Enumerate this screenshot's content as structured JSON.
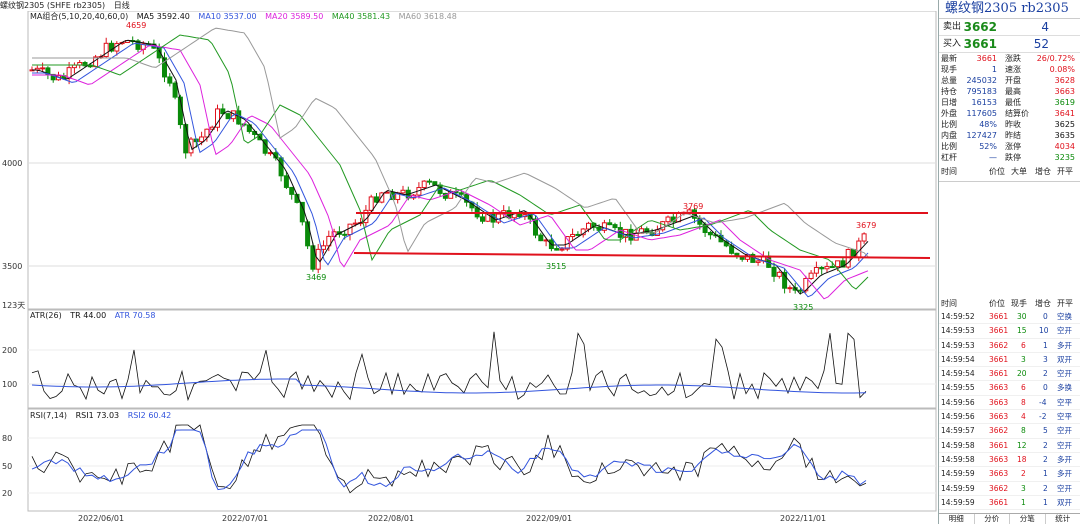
{
  "topbar": {
    "menu": "螺纹钢2305 (SHFE rb2305)",
    "period": "日线"
  },
  "ma": {
    "label": "MA组合(5,10,20,40,60,0)",
    "ma5": "MA5 3592.40",
    "ma10": "MA10 3537.00",
    "ma20": "MA20 3589.50",
    "ma40": "MA40 3581.43",
    "ma60": "MA60 3618.48"
  },
  "colors": {
    "ma5": "#111111",
    "ma10": "#3355dd",
    "ma20": "#dd22dd",
    "ma40": "#229922",
    "ma60": "#999999",
    "up": "#e0111c",
    "down": "#0a8a0a"
  },
  "atr": {
    "label": "ATR(26)",
    "tr": "TR 44.00",
    "atr": "ATR 70.58"
  },
  "rsi": {
    "label": "RSI(7,14)",
    "rsi1": "RSI1 73.03",
    "rsi2": "RSI2 60.42"
  },
  "chart_data": {
    "type": "candlestick",
    "price_ticks": [
      "4000",
      "3500"
    ],
    "atr_ticks": [
      "200",
      "100"
    ],
    "rsi_ticks": [
      "80",
      "50",
      "20"
    ],
    "x_labels": [
      "2022/06/01",
      "2022/07/01",
      "2022/08/01",
      "2022/09/01",
      "2022/11/01"
    ],
    "annotations": [
      "4659",
      "3469",
      "3769",
      "3515",
      "3679",
      "3325"
    ],
    "count_label": "123天"
  },
  "side": {
    "title": "螺纹钢2305  rb2305",
    "sell": {
      "label": "卖出",
      "price": "3662",
      "vol": "4"
    },
    "buy": {
      "label": "买入",
      "price": "3661",
      "vol": "52"
    },
    "quotes": [
      [
        "最新",
        "3661",
        "涨跌",
        "26/0.72%"
      ],
      [
        "现手",
        "1",
        "速涨",
        "0.08%"
      ],
      [
        "总量",
        "245032",
        "开盘",
        "3628"
      ],
      [
        "持仓",
        "795183",
        "最高",
        "3663"
      ],
      [
        "日增",
        "16153",
        "最低",
        "3619"
      ],
      [
        "外盘",
        "117605",
        "结算价",
        "3641"
      ],
      [
        "比例",
        "48%",
        "昨收",
        "3625"
      ],
      [
        "内盘",
        "127427",
        "昨结",
        "3635"
      ],
      [
        "比例",
        "52%",
        "涨停",
        "4034"
      ],
      [
        "杠杆",
        "—",
        "跌停",
        "3235"
      ]
    ],
    "hdr1": [
      "时间",
      "价位",
      "大单",
      "增仓",
      "开平"
    ],
    "hdr2": [
      "时间",
      "价位",
      "现手",
      "增仓",
      "开平"
    ],
    "ticks": [
      [
        "14:59:52",
        "3661",
        "30",
        "0",
        "空换"
      ],
      [
        "14:59:53",
        "3661",
        "15",
        "10",
        "空开"
      ],
      [
        "14:59:53",
        "3662",
        "6",
        "1",
        "多开"
      ],
      [
        "14:59:54",
        "3661",
        "3",
        "3",
        "双开"
      ],
      [
        "14:59:54",
        "3661",
        "20",
        "2",
        "空开"
      ],
      [
        "14:59:55",
        "3663",
        "6",
        "0",
        "多换"
      ],
      [
        "14:59:56",
        "3663",
        "8",
        "-4",
        "空平"
      ],
      [
        "14:59:56",
        "3663",
        "4",
        "-2",
        "空平"
      ],
      [
        "14:59:57",
        "3662",
        "8",
        "5",
        "空开"
      ],
      [
        "14:59:58",
        "3661",
        "12",
        "2",
        "空开"
      ],
      [
        "14:59:58",
        "3663",
        "18",
        "2",
        "多开"
      ],
      [
        "14:59:59",
        "3663",
        "2",
        "1",
        "多开"
      ],
      [
        "14:59:59",
        "3662",
        "3",
        "2",
        "空开"
      ],
      [
        "14:59:59",
        "3661",
        "1",
        "1",
        "双开"
      ]
    ],
    "tabs": [
      "明细",
      "分价",
      "分笔",
      "统计"
    ]
  }
}
